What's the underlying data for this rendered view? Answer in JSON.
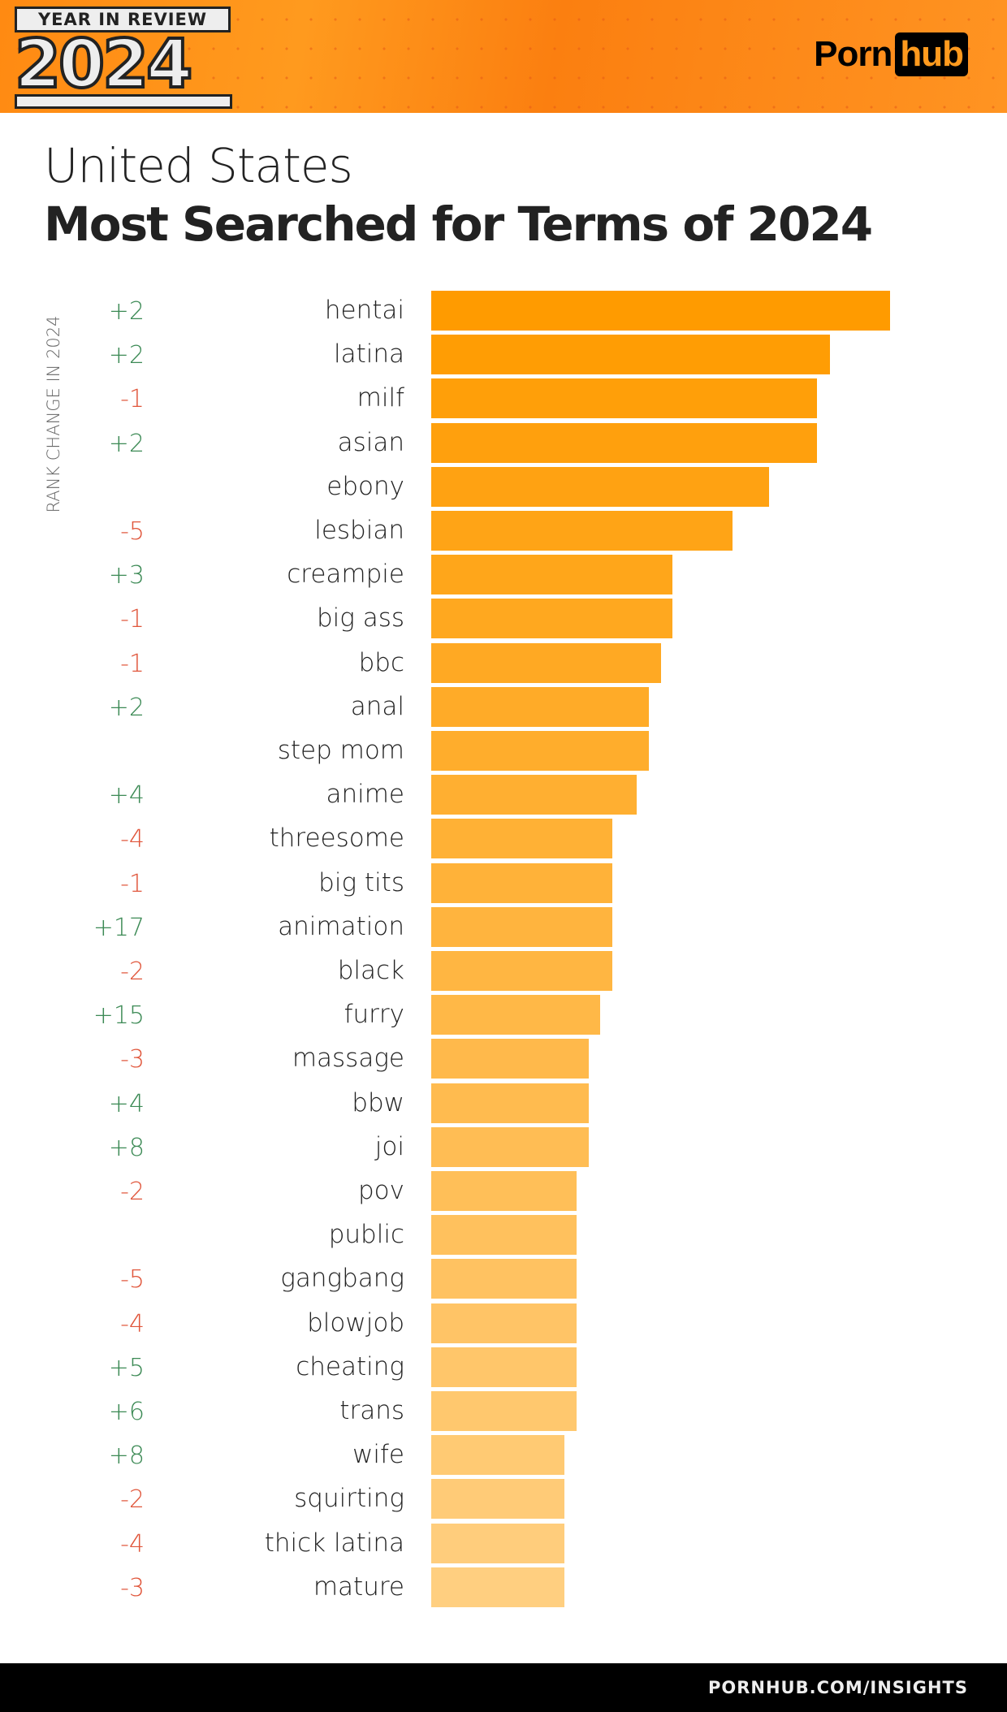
{
  "header": {
    "badge_top": "YEAR IN REVIEW",
    "badge_year": "2024",
    "logo_left": "Porn",
    "logo_right": "hub"
  },
  "title": {
    "country": "United States",
    "heading": "Most Searched for Terms of 2024"
  },
  "footer": {
    "link": "PORNHUB.COM/INSIGHTS"
  },
  "colors": {
    "bar_top": "#FF9B00",
    "bar_bottom": "#FFCF80",
    "positive": "#3C8A55",
    "negative": "#E0553A",
    "header": "#FF8A12"
  },
  "chart_data": {
    "type": "bar",
    "orientation": "horizontal",
    "ylabel": "RANK CHANGE IN 2024",
    "value_unit": "relative search volume (% of top term, estimated from bar length; no axis printed)",
    "categories": [
      "hentai",
      "latina",
      "milf",
      "asian",
      "ebony",
      "lesbian",
      "creampie",
      "big ass",
      "bbc",
      "anal",
      "step mom",
      "anime",
      "threesome",
      "big tits",
      "animation",
      "black",
      "furry",
      "massage",
      "bbw",
      "joi",
      "pov",
      "public",
      "gangbang",
      "blowjob",
      "cheating",
      "trans",
      "wife",
      "squirting",
      "thick latina",
      "mature"
    ],
    "rank_change": [
      "+2",
      "+2",
      "-1",
      "+2",
      "",
      "-5",
      "+3",
      "-1",
      "-1",
      "+2",
      "",
      "+4",
      "-4",
      "-1",
      "+17",
      "-2",
      "+15",
      "-3",
      "+4",
      "+8",
      "-2",
      "",
      "-5",
      "-4",
      "+5",
      "+6",
      "+8",
      "-2",
      "-4",
      "-3"
    ],
    "values": [
      100,
      86.9,
      84,
      84,
      73.6,
      65.7,
      52.6,
      52.6,
      50,
      47.4,
      47.4,
      44.8,
      39.5,
      39.5,
      39.5,
      39.5,
      36.9,
      34.3,
      34.3,
      34.3,
      31.7,
      31.7,
      31.7,
      31.7,
      31.7,
      31.7,
      29,
      29,
      29,
      29
    ]
  }
}
